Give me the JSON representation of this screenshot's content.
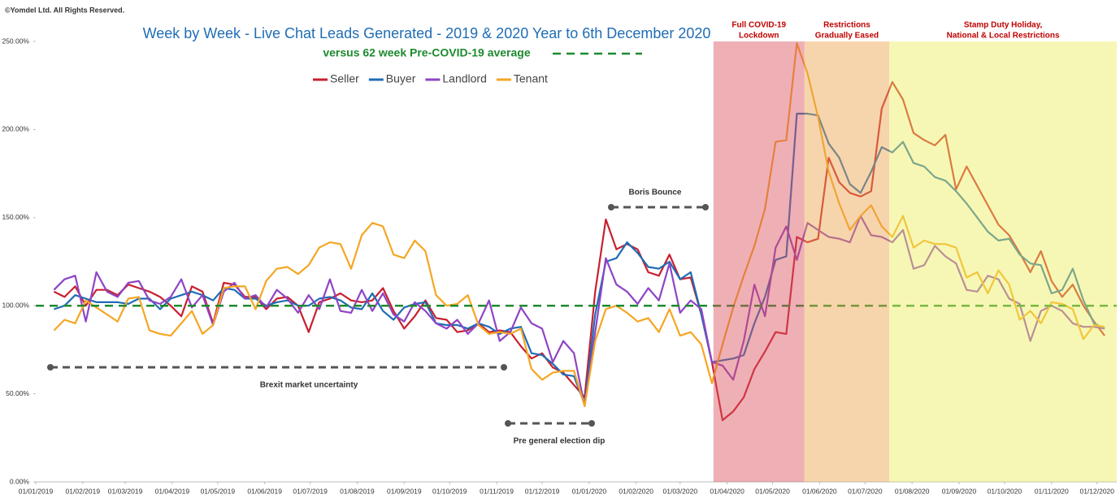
{
  "chart_data": {
    "type": "line",
    "copyright": "©Yomdel Ltd. All Rights Reserved.",
    "title": "Week by Week - Live Chat Leads Generated - 2019 & 2020 Year to 6th December 2020",
    "reference_line": {
      "label": "versus 62 week Pre-COVID-19 average",
      "value": 100,
      "color": "#1e8a2e"
    },
    "x": [
      "13/01/2019",
      "20/01/2019",
      "27/01/2019",
      "03/02/2019",
      "10/02/2019",
      "17/02/2019",
      "24/02/2019",
      "03/03/2019",
      "10/03/2019",
      "17/03/2019",
      "24/03/2019",
      "31/03/2019",
      "07/04/2019",
      "14/04/2019",
      "21/04/2019",
      "28/04/2019",
      "05/05/2019",
      "12/05/2019",
      "19/05/2019",
      "26/05/2019",
      "02/06/2019",
      "09/06/2019",
      "16/06/2019",
      "23/06/2019",
      "30/06/2019",
      "07/07/2019",
      "14/07/2019",
      "21/07/2019",
      "28/07/2019",
      "04/08/2019",
      "11/08/2019",
      "18/08/2019",
      "25/08/2019",
      "01/09/2019",
      "08/09/2019",
      "15/09/2019",
      "22/09/2019",
      "29/09/2019",
      "06/10/2019",
      "13/10/2019",
      "20/10/2019",
      "27/10/2019",
      "03/11/2019",
      "10/11/2019",
      "17/11/2019",
      "24/11/2019",
      "01/12/2019",
      "08/12/2019",
      "15/12/2019",
      "22/12/2019",
      "29/12/2019",
      "05/01/2020",
      "12/01/2020",
      "19/01/2020",
      "26/01/2020",
      "02/02/2020",
      "09/02/2020",
      "16/02/2020",
      "23/02/2020",
      "01/03/2020",
      "08/03/2020",
      "15/03/2020",
      "22/03/2020",
      "29/03/2020",
      "05/04/2020",
      "12/04/2020",
      "19/04/2020",
      "26/04/2020",
      "03/05/2020",
      "10/05/2020",
      "17/05/2020",
      "24/05/2020",
      "31/05/2020",
      "07/06/2020",
      "14/06/2020",
      "21/06/2020",
      "28/06/2020",
      "05/07/2020",
      "12/07/2020",
      "19/07/2020",
      "26/07/2020",
      "02/08/2020",
      "09/08/2020",
      "16/08/2020",
      "23/08/2020",
      "30/08/2020",
      "06/09/2020",
      "13/09/2020",
      "20/09/2020",
      "27/09/2020",
      "04/10/2020",
      "11/10/2020",
      "18/10/2020",
      "25/10/2020",
      "01/11/2020",
      "08/11/2020",
      "15/11/2020",
      "22/11/2020",
      "29/11/2020",
      "06/12/2020"
    ],
    "series": [
      {
        "name": "Seller",
        "color": "#c8202f",
        "values": [
          108,
          105,
          111,
          100,
          109,
          109,
          106,
          112,
          110,
          108,
          105,
          100,
          94,
          111,
          108,
          90,
          113,
          112,
          105,
          105,
          98,
          104,
          105,
          100,
          85,
          102,
          104,
          107,
          103,
          102,
          103,
          110,
          97,
          87,
          94,
          103,
          93,
          92,
          85,
          86,
          90,
          85,
          86,
          85,
          77,
          70,
          73,
          65,
          62,
          55,
          48,
          108,
          149,
          132,
          135,
          132,
          119,
          117,
          129,
          115,
          116,
          95,
          68,
          35,
          40,
          48,
          64,
          74,
          85,
          84,
          139,
          136,
          138,
          184,
          170,
          164,
          162,
          165,
          212,
          227,
          217,
          198,
          194,
          191,
          197,
          166,
          179,
          168,
          157,
          146,
          140,
          130,
          119,
          131,
          114,
          105,
          112,
          100,
          91,
          83
        ]
      },
      {
        "name": "Buyer",
        "color": "#1f6db5",
        "values": [
          98,
          100,
          106,
          104,
          102,
          102,
          102,
          101,
          104,
          104,
          98,
          104,
          106,
          108,
          106,
          103,
          110,
          109,
          104,
          104,
          100,
          102,
          103,
          100,
          100,
          104,
          105,
          103,
          99,
          98,
          107,
          97,
          92,
          99,
          101,
          102,
          90,
          89,
          89,
          87,
          90,
          88,
          84,
          87,
          88,
          73,
          72,
          67,
          61,
          60,
          44,
          95,
          125,
          127,
          136,
          130,
          122,
          121,
          125,
          115,
          119,
          95,
          68,
          69,
          70,
          72,
          90,
          105,
          126,
          128,
          209,
          209,
          208,
          192,
          184,
          169,
          164,
          176,
          190,
          187,
          193,
          181,
          179,
          173,
          171,
          165,
          158,
          150,
          142,
          137,
          138,
          129,
          124,
          123,
          107,
          109,
          121,
          103,
          90,
          87
        ]
      },
      {
        "name": "Landlord",
        "color": "#8e44c4",
        "values": [
          109,
          115,
          117,
          91,
          119,
          108,
          105,
          113,
          114,
          103,
          101,
          105,
          115,
          99,
          106,
          89,
          108,
          113,
          104,
          106,
          99,
          109,
          104,
          96,
          106,
          98,
          115,
          97,
          96,
          109,
          97,
          107,
          95,
          91,
          102,
          97,
          90,
          87,
          92,
          84,
          90,
          103,
          80,
          85,
          99,
          90,
          87,
          68,
          80,
          73,
          43,
          85,
          127,
          112,
          108,
          101,
          110,
          103,
          124,
          96,
          103,
          98,
          68,
          66,
          58,
          80,
          112,
          94,
          133,
          145,
          126,
          147,
          143,
          139,
          138,
          136,
          151,
          140,
          139,
          136,
          143,
          121,
          123,
          134,
          128,
          124,
          109,
          108,
          117,
          115,
          104,
          101,
          80,
          97,
          100,
          97,
          90,
          88,
          88,
          87
        ]
      },
      {
        "name": "Tenant",
        "color": "#f5a623",
        "values": [
          86,
          92,
          90,
          103,
          99,
          95,
          91,
          104,
          105,
          86,
          84,
          83,
          90,
          97,
          84,
          89,
          110,
          111,
          111,
          98,
          114,
          121,
          122,
          118,
          123,
          133,
          136,
          135,
          121,
          140,
          147,
          145,
          129,
          127,
          137,
          131,
          106,
          100,
          101,
          106,
          89,
          84,
          85,
          84,
          87,
          64,
          58,
          62,
          63,
          63,
          43,
          80,
          98,
          100,
          96,
          91,
          93,
          85,
          98,
          83,
          85,
          78,
          56,
          78,
          99,
          117,
          134,
          155,
          193,
          194,
          249,
          232,
          207,
          176,
          158,
          143,
          151,
          157,
          145,
          139,
          151,
          133,
          137,
          135,
          135,
          133,
          116,
          119,
          107,
          120,
          112,
          92,
          97,
          90,
          102,
          101,
          98,
          81,
          89,
          88
        ]
      }
    ],
    "xlim": [
      "01/01/2019",
      "14/12/2020"
    ],
    "xticks": [
      "01/01/2019",
      "01/02/2019",
      "01/03/2019",
      "01/04/2019",
      "01/05/2019",
      "01/06/2019",
      "01/07/2019",
      "01/08/2019",
      "01/09/2019",
      "01/10/2019",
      "01/11/2019",
      "01/12/2019",
      "01/01/2020",
      "01/02/2020",
      "01/03/2020",
      "01/04/2020",
      "01/05/2020",
      "01/06/2020",
      "01/07/2020",
      "01/08/2020",
      "01/09/2020",
      "01/10/2020",
      "01/11/2020",
      "01/12/2020"
    ],
    "ylim": [
      0,
      250
    ],
    "yticks": [
      {
        "value": 0,
        "label": "0.00%"
      },
      {
        "value": 50,
        "label": "50.00%"
      },
      {
        "value": 100,
        "label": "100.00%"
      },
      {
        "value": 150,
        "label": "150.00%"
      },
      {
        "value": 200,
        "label": "200.00%"
      },
      {
        "value": 250,
        "label": "250.00%"
      }
    ],
    "spans": [
      {
        "label": [
          "Full COVID-19",
          "Lockdown"
        ],
        "from": "23/03/2020",
        "to": "22/05/2020",
        "color": "#d9505c"
      },
      {
        "label": [
          "Restrictions",
          "Gradually Eased"
        ],
        "from": "22/05/2020",
        "to": "17/07/2020",
        "color": "#eba24a"
      },
      {
        "label": [
          "Stamp Duty Holiday,",
          "National & Local Restrictions"
        ],
        "from": "17/07/2020",
        "to": "14/12/2020",
        "color": "#eded5a"
      }
    ],
    "annotations": [
      "Brexit market uncertainty",
      "Pre general election dip",
      "Boris Bounce"
    ]
  }
}
